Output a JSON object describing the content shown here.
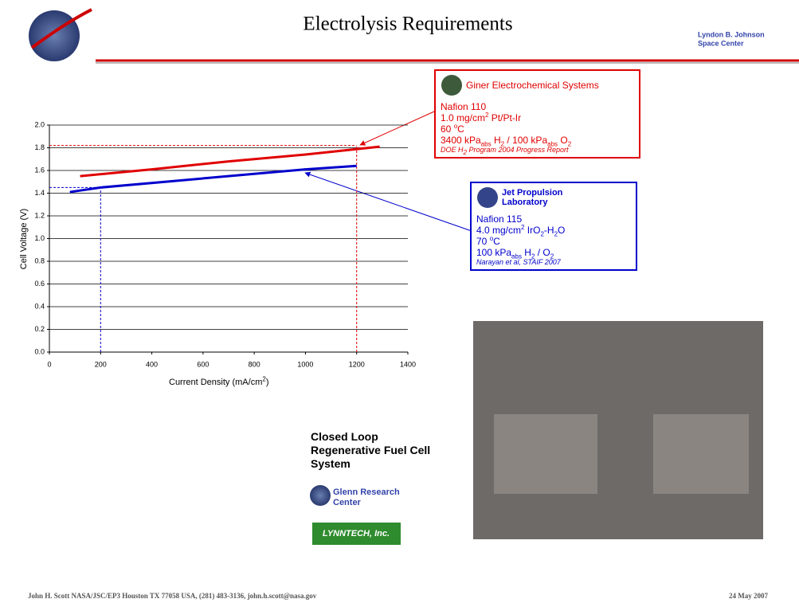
{
  "header": {
    "title": "Electrolysis Requirements",
    "center": [
      "Lyndon B. Johnson",
      "Space Center"
    ]
  },
  "chart_data": {
    "type": "line",
    "x_label": [
      "Current Density (mA/cm",
      {
        "sup": "2"
      },
      ")"
    ],
    "y_label": "Cell Voltage  (V)",
    "xlim": [
      0,
      1400
    ],
    "xticks": [
      0,
      200,
      400,
      600,
      800,
      1000,
      1200,
      1400
    ],
    "ylim": [
      0,
      2
    ],
    "yticks": [
      {
        "value": 0,
        "label": "0.0"
      },
      0.2,
      0.4,
      0.6,
      0.8,
      {
        "value": 1,
        "label": "1.0"
      },
      1.2,
      1.4,
      1.6,
      1.8,
      {
        "value": 2,
        "label": "2.0"
      }
    ],
    "grid": true,
    "series": [
      {
        "name": "Giner Electrochemical Systems",
        "color": "#e00000",
        "x": [
          120,
          400,
          700,
          1000,
          1290
        ],
        "values": [
          1.55,
          1.61,
          1.68,
          1.74,
          1.81
        ],
        "details": [
          [
            "Nafion 110"
          ],
          [
            "1.0 mg/cm",
            {
              "sup": "2"
            },
            " Pt/Pt-Ir"
          ],
          [
            "60 ",
            {
              "sup": "o"
            },
            "C"
          ],
          [
            "3400 kPa",
            {
              "sub": "abs"
            },
            " H",
            {
              "sub": "2"
            },
            " / 100 kPa",
            {
              "sub": "abs"
            },
            " O",
            {
              "sub": "2"
            }
          ]
        ],
        "source": [
          "DOE H",
          {
            "sub": "2"
          },
          " Program 2004 Progress Report"
        ]
      },
      {
        "name": "Jet Propulsion Laboratory",
        "color": "#0000cc",
        "x": [
          80,
          200,
          500,
          800,
          1000,
          1200
        ],
        "values": [
          1.41,
          1.45,
          1.51,
          1.57,
          1.61,
          1.64
        ],
        "details": [
          [
            "Nafion 115"
          ],
          [
            "4.0 mg/cm",
            {
              "sup": "2"
            },
            " IrO",
            {
              "sub": "2"
            },
            "-H",
            {
              "sub": "2"
            },
            "O"
          ],
          [
            "70 ",
            {
              "sup": "o"
            },
            "C"
          ],
          [
            "100 kPa",
            {
              "sub": "abs"
            },
            " H",
            {
              "sub": "2"
            },
            " / O",
            {
              "sub": "2"
            }
          ]
        ],
        "source": [
          "Narayan et al, STAIF 2007"
        ]
      }
    ],
    "reference_lines": [
      {
        "x": 1200,
        "y": 1.82,
        "color": "#e00000"
      },
      {
        "x": 200,
        "y": 1.45,
        "color": "#0000cc"
      }
    ]
  },
  "system": {
    "title": [
      "Closed Loop",
      "Regenerative Fuel Cell",
      "System"
    ],
    "partner": "Glenn Research Center",
    "logo": "LYNNTECH, Inc."
  },
  "footer": {
    "contact": "John H. Scott  NASA/JSC/EP3 Houston TX   77058 USA, (281) 483-3136, john.h.scott@nasa.gov",
    "date": "24 May 2007"
  }
}
